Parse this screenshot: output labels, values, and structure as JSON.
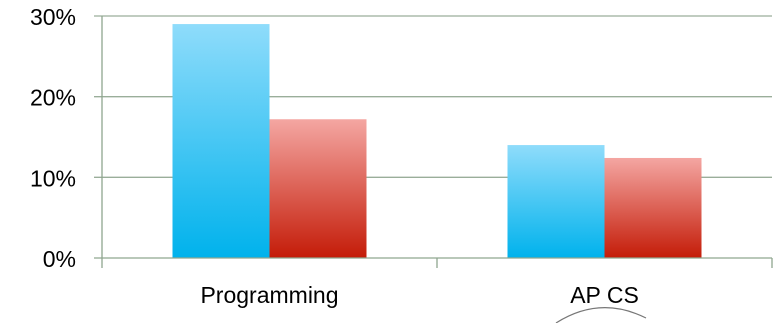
{
  "chart_data": {
    "type": "bar",
    "title": "",
    "xlabel": "",
    "ylabel": "",
    "categories": [
      "Programming",
      "AP CS"
    ],
    "series": [
      {
        "values": [
          29,
          14
        ],
        "color": "#35bdf0"
      },
      {
        "values": [
          17.2,
          12.4
        ],
        "color": "#e0524a"
      }
    ],
    "ylim": [
      0,
      30
    ],
    "yticks": [
      0,
      10,
      20,
      30
    ],
    "ytick_labels": [
      "0%",
      "10%",
      "20%",
      "30%"
    ],
    "grid": true,
    "legend": "none",
    "axis_color": "#8fa68f",
    "grid_color": "#9aae9a"
  }
}
